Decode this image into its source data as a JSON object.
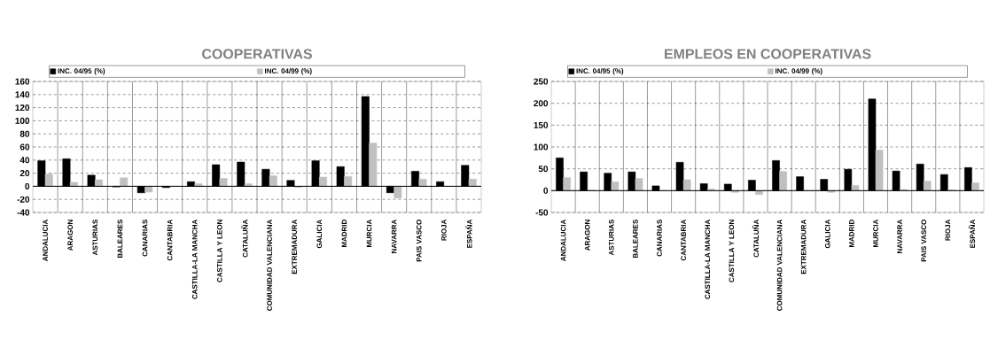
{
  "chart_data": [
    {
      "type": "bar",
      "title": "COOPERATIVAS",
      "categories": [
        "ANDALUCIA",
        "ARAGON",
        "ASTURIAS",
        "BALEARES",
        "CANARIAS",
        "CANTABRIA",
        "CASTILLA-LA MANCHA",
        "CASTILLA Y LEON",
        "CATALUÑA",
        "COMUNIDAD VALENCIANA",
        "EXTREMADURA",
        "GALICIA",
        "MADRID",
        "MURCIA",
        "NAVARRA",
        "PAIS VASCO",
        "RIOJA",
        "ESPAÑA"
      ],
      "series": [
        {
          "name": "INC. 04/95 (%)",
          "color": "#000000",
          "values": [
            39,
            42,
            17,
            -1,
            -10,
            -2,
            7,
            33,
            37,
            26,
            9,
            39,
            30,
            137,
            -10,
            23,
            7,
            32
          ]
        },
        {
          "name": "INC. 04/99 (%)",
          "color": "#c0c0c0",
          "values": [
            19,
            6,
            10,
            13,
            -9,
            0,
            4,
            12,
            4,
            16,
            -2,
            14,
            15,
            66,
            -18,
            11,
            0,
            11
          ]
        }
      ],
      "ylim": [
        -40,
        160
      ],
      "yticks": [
        -40,
        -20,
        0,
        20,
        40,
        60,
        80,
        100,
        120,
        140,
        160
      ],
      "grid": true,
      "legend": "top"
    },
    {
      "type": "bar",
      "title": "EMPLEOS EN COOPERATIVAS",
      "categories": [
        "ANDALUCIA",
        "ARAGON",
        "ASTURIAS",
        "BALEARES",
        "CANARIAS",
        "CANTABRIA",
        "CASTILLA-LA MANCHA",
        "CASTILLA Y LEON",
        "CATALUÑA",
        "COMUNIDAD VALENCIANA",
        "EXTREMADURA",
        "GALICIA",
        "MADRID",
        "MURCIA",
        "NAVARRA",
        "PAIS VASCO",
        "RIOJA",
        "ESPAÑA"
      ],
      "series": [
        {
          "name": "INC. 04/95 (%)",
          "color": "#000000",
          "values": [
            75,
            43,
            40,
            43,
            11,
            65,
            16,
            15,
            24,
            69,
            32,
            26,
            49,
            210,
            45,
            61,
            37,
            53
          ]
        },
        {
          "name": "INC. 04/99 (%)",
          "color": "#c0c0c0",
          "values": [
            30,
            1,
            20,
            28,
            0,
            25,
            4,
            -4,
            -9,
            44,
            0,
            -4,
            12,
            93,
            3,
            22,
            2,
            18
          ]
        }
      ],
      "ylim": [
        -50,
        250
      ],
      "yticks": [
        -50,
        0,
        50,
        100,
        150,
        200,
        250
      ],
      "grid": true,
      "legend": "top"
    }
  ]
}
